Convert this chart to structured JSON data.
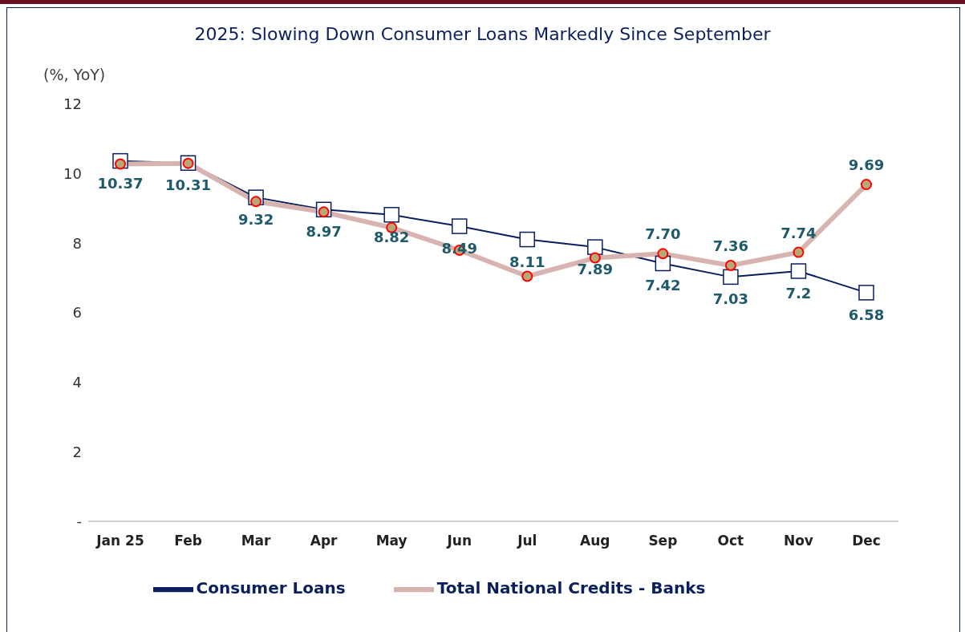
{
  "chart_data": {
    "type": "line",
    "title": "2025: Slowing Down Consumer Loans Markedly Since September",
    "ylabel": "(%, YoY)",
    "categories": [
      "Jan 25",
      "Feb",
      "Mar",
      "Apr",
      "May",
      "Jun",
      "Jul",
      "Aug",
      "Sep",
      "Oct",
      "Nov",
      "Dec"
    ],
    "series": [
      {
        "name": "Consumer Loans",
        "color": "#0b1f5c",
        "marker": "square",
        "values": [
          10.37,
          10.31,
          9.32,
          8.97,
          8.82,
          8.49,
          8.11,
          7.89,
          7.42,
          7.03,
          7.2,
          6.58
        ],
        "value_labels": [
          "10.37",
          "10.31",
          "9.32",
          "8.97",
          "8.82",
          "8.49",
          "8.11",
          "7.89",
          "7.42",
          "7.03",
          "7.2",
          "6.58"
        ]
      },
      {
        "name": "Total National Credits - Banks",
        "color": "#d8b4b0",
        "marker": "circle",
        "values": [
          10.28,
          10.3,
          9.2,
          8.9,
          8.45,
          7.8,
          7.05,
          7.58,
          7.7,
          7.36,
          7.74,
          9.69
        ],
        "value_labels": [
          null,
          null,
          null,
          null,
          null,
          null,
          null,
          null,
          "7.70",
          "7.36",
          "7.74",
          "9.69"
        ]
      }
    ],
    "ylim": [
      0,
      12
    ],
    "yticks": [
      {
        "value": 0,
        "label": "-"
      },
      2,
      4,
      6,
      8,
      10,
      12
    ],
    "grid": false,
    "legend": "bottom"
  }
}
